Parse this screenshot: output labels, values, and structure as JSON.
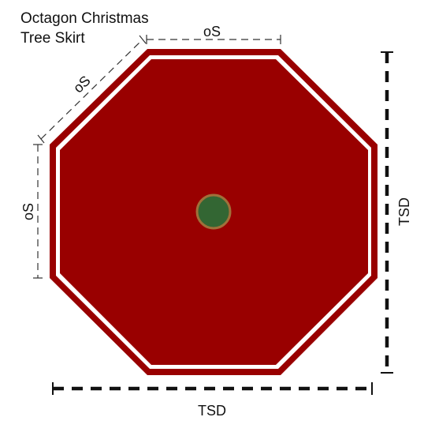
{
  "title": {
    "line1": "Octagon Christmas",
    "line2": "Tree Skirt"
  },
  "labels": {
    "side_top": "oS",
    "side_diagonal": "oS",
    "side_left": "oS",
    "tsd_right": "TSD",
    "tsd_bottom": "TSD"
  },
  "colors": {
    "skirt_fill": "#990000",
    "skirt_trim": "#ffffff",
    "center_fill": "#336633",
    "center_ring": "#a0703a",
    "dimension_line": "#222222"
  }
}
